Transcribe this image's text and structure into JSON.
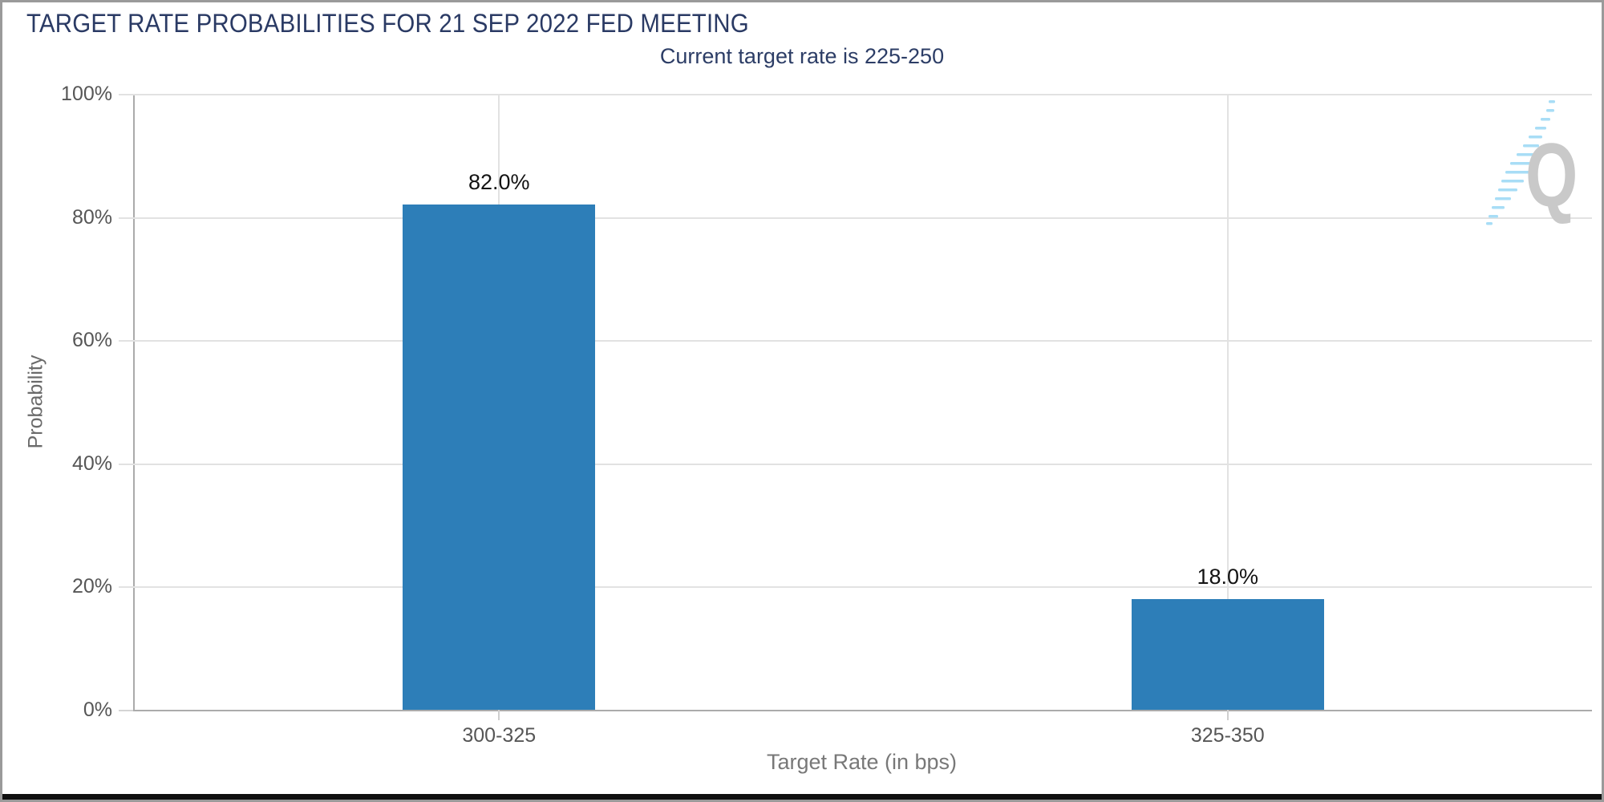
{
  "header": {
    "title": "TARGET RATE PROBABILITIES FOR 21 SEP 2022 FED MEETING",
    "subtitle": "Current target rate is 225-250"
  },
  "chart_data": {
    "type": "bar",
    "title": "TARGET RATE PROBABILITIES FOR 21 SEP 2022 FED MEETING",
    "subtitle": "Current target rate is 225-250",
    "categories": [
      "300-325",
      "325-350"
    ],
    "values": [
      82.0,
      18.0
    ],
    "bar_labels": [
      "82.0%",
      "18.0%"
    ],
    "xlabel": "Target Rate (in bps)",
    "ylabel": "Probability",
    "ylim": [
      0,
      100
    ],
    "ytick_values": [
      0,
      20,
      40,
      60,
      80,
      100
    ],
    "ytick_labels_top_to_bottom": [
      "100%",
      "80%",
      "60%",
      "40%",
      "20%",
      "0%"
    ],
    "grid": "horizontal 20% steps + vertical line at each category center",
    "legend": "none",
    "bar_color": "#2d7eb8"
  },
  "colors": {
    "title_navy": "#2a3a64",
    "bar_blue": "#2d7eb8",
    "axis_line": "#ababab",
    "gridline": "#e2e2e2",
    "tick_label_gray": "#565656",
    "axis_title_gray": "#787878",
    "frame_border": "#9a9a9a",
    "watermark_gray": "#c9c9c9",
    "watermark_blue": "#a8ddf6"
  },
  "watermark": {
    "letter": "Q"
  }
}
